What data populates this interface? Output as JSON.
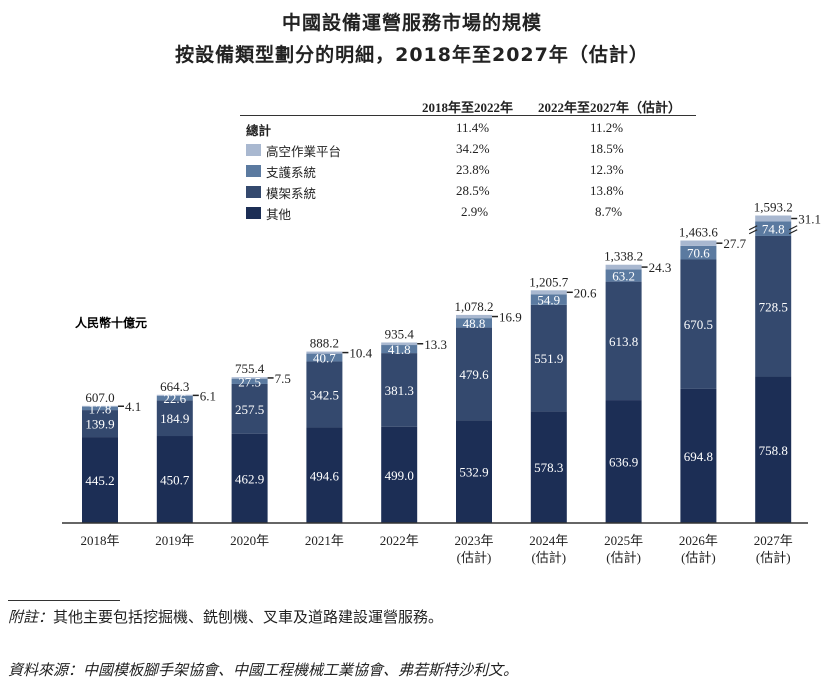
{
  "title_line1": "中國設備運營服務市場的規模",
  "title_line2": "按設備類型劃分的明細，2018年至2027年（估計）",
  "cagr_table": {
    "headers": [
      "2018年至2022年",
      "2022年至2027年（估計）"
    ],
    "rows": [
      {
        "label": "總計",
        "v1": "11.4%",
        "v2": "11.2%",
        "color": ""
      },
      {
        "label": "高空作業平台",
        "v1": "34.2%",
        "v2": "18.5%",
        "color": "#a9b8d0"
      },
      {
        "label": "支護系統",
        "v1": "23.8%",
        "v2": "12.3%",
        "color": "#5b7aa0"
      },
      {
        "label": "模架系統",
        "v1": "28.5%",
        "v2": "13.8%",
        "color": "#34496e"
      },
      {
        "label": "其他",
        "v1": "2.9%",
        "v2": "8.7%",
        "color": "#1c2e55"
      }
    ]
  },
  "chart_data": {
    "type": "bar",
    "stacked": true,
    "ylabel": "人民幣十億元",
    "categories": [
      "2018年",
      "2019年",
      "2020年",
      "2021年",
      "2022年",
      "2023年",
      "2024年",
      "2025年",
      "2026年",
      "2027年"
    ],
    "category_sub": [
      "",
      "",
      "",
      "",
      "",
      "(估計)",
      "(估計)",
      "(估計)",
      "(估計)",
      "(估計)"
    ],
    "series": [
      {
        "name": "其他",
        "color": "#1c2e55",
        "values": [
          445.2,
          450.7,
          462.9,
          494.6,
          499.0,
          532.9,
          578.3,
          636.9,
          694.8,
          758.8
        ]
      },
      {
        "name": "模架系統",
        "color": "#34496e",
        "values": [
          139.9,
          184.9,
          257.5,
          342.5,
          381.3,
          479.6,
          551.9,
          613.8,
          670.5,
          728.5
        ]
      },
      {
        "name": "支護系統",
        "color": "#5b7aa0",
        "values": [
          17.8,
          22.6,
          27.5,
          40.7,
          41.8,
          48.8,
          54.9,
          63.2,
          70.6,
          74.8
        ]
      },
      {
        "name": "高空作業平台",
        "color": "#a9b8d0",
        "values": [
          4.1,
          6.1,
          7.5,
          10.4,
          13.3,
          16.9,
          20.6,
          24.3,
          27.7,
          31.1
        ]
      }
    ],
    "totals": [
      "607.0",
      "664.3",
      "755.4",
      "888.2",
      "935.4",
      "1,078.2",
      "1,205.7",
      "1,338.2",
      "1,463.6",
      "1,593.2"
    ],
    "axis_break_on_last_bar": true,
    "grid": false,
    "legend": "top (table)"
  },
  "footnote_label": "附註：",
  "footnote_text": "其他主要包括挖掘機、銑刨機、叉車及道路建設運營服務。",
  "source_label": "資料來源：",
  "source_text": "中國模板腳手架協會、中國工程機械工業協會、弗若斯特沙利文。"
}
